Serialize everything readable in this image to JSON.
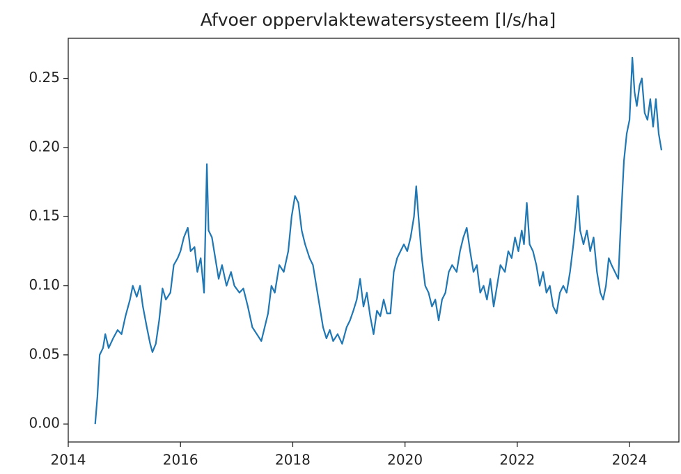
{
  "chart_data": {
    "type": "line",
    "title": "Afvoer oppervlaktewatersysteem [l/s/ha]",
    "xlim": [
      2014,
      2024.88
    ],
    "xticks": [
      2014,
      2016,
      2018,
      2020,
      2022,
      2024
    ],
    "ylim": [
      -0.013,
      0.279
    ],
    "yticks": [
      {
        "value": 0,
        "label": "0.00"
      },
      {
        "value": 0.05,
        "label": "0.05"
      },
      {
        "value": 0.1,
        "label": "0.10"
      },
      {
        "value": 0.15,
        "label": "0.15"
      },
      {
        "value": 0.2,
        "label": "0.20"
      },
      {
        "value": 0.25,
        "label": "0.25"
      }
    ],
    "grid": false,
    "series": [
      {
        "color": "#1f77b4",
        "x": [
          2014.48,
          2014.52,
          2014.56,
          2014.62,
          2014.66,
          2014.72,
          2014.8,
          2014.88,
          2014.95,
          2015.02,
          2015.1,
          2015.15,
          2015.22,
          2015.28,
          2015.33,
          2015.4,
          2015.46,
          2015.5,
          2015.56,
          2015.62,
          2015.68,
          2015.74,
          2015.82,
          2015.88,
          2015.95,
          2016.0,
          2016.06,
          2016.13,
          2016.18,
          2016.25,
          2016.3,
          2016.36,
          2016.42,
          2016.47,
          2016.5,
          2016.56,
          2016.62,
          2016.68,
          2016.74,
          2016.82,
          2016.9,
          2016.96,
          2017.05,
          2017.12,
          2017.2,
          2017.28,
          2017.36,
          2017.44,
          2017.5,
          2017.56,
          2017.62,
          2017.68,
          2017.76,
          2017.84,
          2017.92,
          2017.98,
          2018.04,
          2018.1,
          2018.16,
          2018.22,
          2018.3,
          2018.36,
          2018.42,
          2018.48,
          2018.54,
          2018.6,
          2018.66,
          2018.72,
          2018.8,
          2018.88,
          2018.96,
          2019.02,
          2019.08,
          2019.14,
          2019.2,
          2019.26,
          2019.32,
          2019.38,
          2019.44,
          2019.5,
          2019.56,
          2019.62,
          2019.68,
          2019.74,
          2019.8,
          2019.86,
          2019.92,
          2019.98,
          2020.04,
          2020.1,
          2020.16,
          2020.2,
          2020.24,
          2020.3,
          2020.36,
          2020.42,
          2020.48,
          2020.54,
          2020.6,
          2020.66,
          2020.72,
          2020.78,
          2020.84,
          2020.92,
          2020.98,
          2021.04,
          2021.1,
          2021.16,
          2021.22,
          2021.28,
          2021.34,
          2021.4,
          2021.46,
          2021.52,
          2021.58,
          2021.64,
          2021.7,
          2021.78,
          2021.84,
          2021.9,
          2021.96,
          2022.02,
          2022.08,
          2022.12,
          2022.17,
          2022.22,
          2022.28,
          2022.34,
          2022.4,
          2022.46,
          2022.52,
          2022.58,
          2022.64,
          2022.7,
          2022.76,
          2022.82,
          2022.88,
          2022.94,
          2023.0,
          2023.05,
          2023.08,
          2023.12,
          2023.18,
          2023.24,
          2023.3,
          2023.36,
          2023.42,
          2023.48,
          2023.53,
          2023.58,
          2023.63,
          2023.68,
          2023.74,
          2023.8,
          2023.85,
          2023.9,
          2023.95,
          2024.0,
          2024.05,
          2024.09,
          2024.13,
          2024.18,
          2024.22,
          2024.27,
          2024.32,
          2024.37,
          2024.42,
          2024.47,
          2024.52,
          2024.57
        ],
        "values": [
          0.0,
          0.02,
          0.05,
          0.055,
          0.065,
          0.055,
          0.062,
          0.068,
          0.065,
          0.078,
          0.09,
          0.1,
          0.092,
          0.1,
          0.085,
          0.07,
          0.058,
          0.052,
          0.058,
          0.075,
          0.098,
          0.09,
          0.095,
          0.115,
          0.12,
          0.125,
          0.135,
          0.142,
          0.125,
          0.128,
          0.11,
          0.12,
          0.095,
          0.188,
          0.14,
          0.135,
          0.12,
          0.105,
          0.115,
          0.1,
          0.11,
          0.1,
          0.095,
          0.098,
          0.085,
          0.07,
          0.065,
          0.06,
          0.07,
          0.08,
          0.1,
          0.095,
          0.115,
          0.11,
          0.125,
          0.15,
          0.165,
          0.16,
          0.14,
          0.13,
          0.12,
          0.115,
          0.1,
          0.085,
          0.07,
          0.062,
          0.068,
          0.06,
          0.065,
          0.058,
          0.07,
          0.075,
          0.082,
          0.09,
          0.105,
          0.085,
          0.095,
          0.078,
          0.065,
          0.082,
          0.078,
          0.09,
          0.08,
          0.08,
          0.11,
          0.12,
          0.125,
          0.13,
          0.125,
          0.135,
          0.15,
          0.172,
          0.15,
          0.12,
          0.1,
          0.095,
          0.085,
          0.09,
          0.075,
          0.09,
          0.095,
          0.11,
          0.115,
          0.11,
          0.125,
          0.135,
          0.142,
          0.125,
          0.11,
          0.115,
          0.095,
          0.1,
          0.09,
          0.105,
          0.085,
          0.1,
          0.115,
          0.11,
          0.125,
          0.12,
          0.135,
          0.125,
          0.14,
          0.13,
          0.16,
          0.13,
          0.125,
          0.115,
          0.1,
          0.11,
          0.095,
          0.1,
          0.085,
          0.08,
          0.095,
          0.1,
          0.095,
          0.11,
          0.13,
          0.15,
          0.165,
          0.14,
          0.13,
          0.14,
          0.125,
          0.135,
          0.11,
          0.095,
          0.09,
          0.1,
          0.12,
          0.115,
          0.11,
          0.105,
          0.15,
          0.19,
          0.21,
          0.22,
          0.265,
          0.24,
          0.23,
          0.245,
          0.25,
          0.225,
          0.22,
          0.235,
          0.215,
          0.235,
          0.21,
          0.198
        ]
      }
    ]
  }
}
